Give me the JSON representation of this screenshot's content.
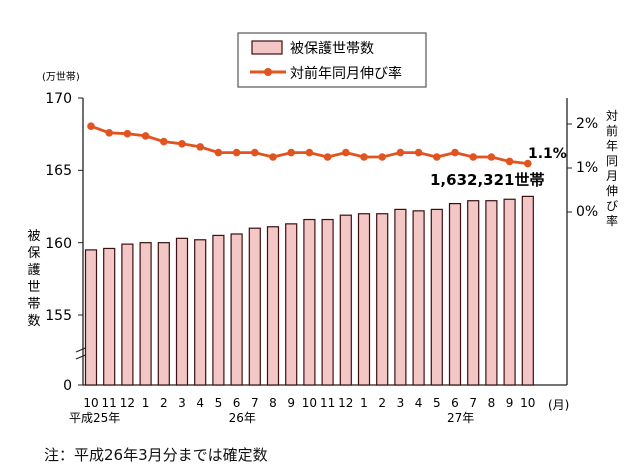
{
  "chart_data": {
    "type": "bar+line",
    "legend": {
      "bar_label": "被保護世帯数",
      "line_label": "対前年同月伸び率",
      "placement": "top-center"
    },
    "y_left": {
      "unit": "(万世帯)",
      "label": "被保護世帯数",
      "ticks": [
        "170",
        "165",
        "160",
        "155",
        "0"
      ],
      "tick_values": [
        170,
        165,
        160,
        155,
        0
      ],
      "range": [
        155,
        170
      ],
      "axis_break": true
    },
    "y_right": {
      "label": "対前年同月伸び率",
      "ticks": [
        "2%",
        "1%",
        "0%"
      ],
      "tick_values": [
        2,
        1,
        0
      ]
    },
    "x_unit": "(月)",
    "categories": [
      "10",
      "11",
      "12",
      "1",
      "2",
      "3",
      "4",
      "5",
      "6",
      "7",
      "8",
      "9",
      "10",
      "11",
      "12",
      "1",
      "2",
      "3",
      "4",
      "5",
      "6",
      "7",
      "8",
      "9",
      "10"
    ],
    "year_labels": [
      {
        "index": 0,
        "text": "平成25年"
      },
      {
        "index": 8,
        "text": "26年"
      },
      {
        "index": 20,
        "text": "27年"
      }
    ],
    "series": [
      {
        "name": "被保護世帯数",
        "kind": "bar",
        "color": "#f4c7c7",
        "edge": "#3a1010",
        "values": [
          159.5,
          159.6,
          159.9,
          160.0,
          160.0,
          160.3,
          160.2,
          160.5,
          160.6,
          161.0,
          161.1,
          161.3,
          161.6,
          161.6,
          161.9,
          162.0,
          162.0,
          162.3,
          162.2,
          162.3,
          162.7,
          162.9,
          162.9,
          163.0,
          163.2
        ]
      },
      {
        "name": "対前年同月伸び率",
        "kind": "line",
        "color": "#e2541f",
        "values": [
          1.95,
          1.8,
          1.78,
          1.73,
          1.6,
          1.55,
          1.48,
          1.35,
          1.35,
          1.35,
          1.25,
          1.35,
          1.35,
          1.25,
          1.35,
          1.25,
          1.25,
          1.35,
          1.35,
          1.25,
          1.35,
          1.25,
          1.25,
          1.15,
          1.1
        ]
      }
    ],
    "annotations": {
      "last_rate": "1.1%",
      "last_households": "1,632,321世帯"
    },
    "grid": false
  },
  "note": "注：平成26年3月分までは確定数"
}
